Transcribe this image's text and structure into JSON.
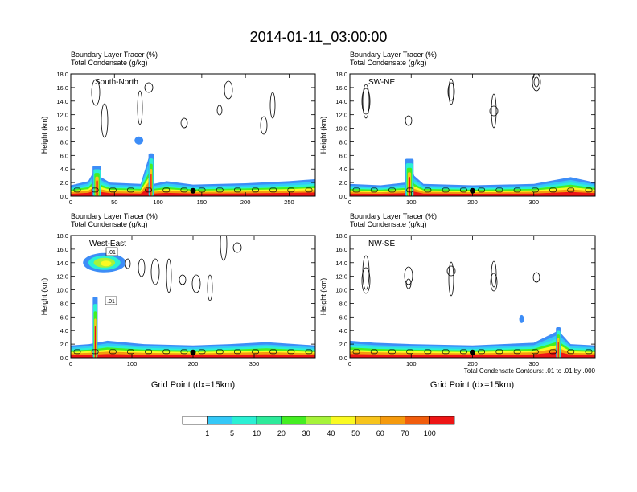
{
  "title": "2014-01-11_03:00:00",
  "footnote": "Total Condensate Contours: .01 to .01 by .000",
  "xlabel": "Grid Point (dx=15km)",
  "ylabel": "Height (km)",
  "header_line1": "Boundary Layer Tracer   (%)",
  "header_line2": "Total Condensate   (g/kg)",
  "colorbar": {
    "levels": [
      "1",
      "5",
      "10",
      "20",
      "30",
      "40",
      "50",
      "60",
      "70",
      "100"
    ],
    "colors": [
      "#ffffff",
      "#3d8df7",
      "#34c8f7",
      "#2bf0d4",
      "#2dea9a",
      "#44ee22",
      "#a6f33a",
      "#fafa22",
      "#f7c41c",
      "#f59a0d",
      "#f15d0d",
      "#ee1515"
    ]
  },
  "chart_data": [
    {
      "type": "heatmap",
      "panel": "top-left",
      "label": "South-North",
      "ylabel": "Height (km)",
      "xlim": [
        0,
        280
      ],
      "ylim": [
        0,
        18
      ],
      "xticks": [
        "0",
        "50",
        "100",
        "150",
        "200",
        "250"
      ],
      "xtick_values": [
        0,
        50,
        100,
        150,
        200,
        250
      ],
      "yticks": [
        "0.0",
        "2.0",
        "4.0",
        "6.0",
        "8.0",
        "10.0",
        "12.0",
        "14.0",
        "16.0",
        "18.0"
      ],
      "marker_x": 140,
      "boundary_layer_top": [
        [
          0,
          1.6
        ],
        [
          20,
          2.2
        ],
        [
          28,
          4.0
        ],
        [
          32,
          3.0
        ],
        [
          45,
          2.0
        ],
        [
          80,
          1.8
        ],
        [
          90,
          6.0
        ],
        [
          95,
          1.8
        ],
        [
          110,
          2.2
        ],
        [
          140,
          1.7
        ],
        [
          200,
          1.9
        ],
        [
          250,
          2.2
        ],
        [
          280,
          2.5
        ]
      ],
      "plumes": [
        {
          "x": 92,
          "ytop": 6.3,
          "width": 6
        },
        {
          "x": 30,
          "ytop": 4.5,
          "width": 10
        },
        {
          "x": 78,
          "ytop": 9.0,
          "width": 10,
          "detached": true
        }
      ]
    },
    {
      "type": "heatmap",
      "panel": "top-right",
      "label": "SW-NE",
      "ylabel": "Height (km)",
      "xlim": [
        0,
        400
      ],
      "ylim": [
        0,
        18
      ],
      "xticks": [
        "0",
        "100",
        "200",
        "300"
      ],
      "xtick_values": [
        0,
        100,
        200,
        300
      ],
      "yticks": [
        "0.0",
        "2.0",
        "4.0",
        "6.0",
        "8.0",
        "10.0",
        "12.0",
        "14.0",
        "16.0",
        "18.0"
      ],
      "marker_x": 200,
      "boundary_layer_top": [
        [
          0,
          1.8
        ],
        [
          50,
          1.6
        ],
        [
          90,
          2.0
        ],
        [
          95,
          5.5
        ],
        [
          105,
          3.0
        ],
        [
          120,
          1.8
        ],
        [
          200,
          1.6
        ],
        [
          300,
          1.8
        ],
        [
          360,
          2.8
        ],
        [
          400,
          2.0
        ]
      ],
      "plumes": [
        {
          "x": 97,
          "ytop": 5.5,
          "width": 14
        }
      ]
    },
    {
      "type": "heatmap",
      "panel": "bottom-left",
      "label": "West-East",
      "ylabel": "Height (km)",
      "xlim": [
        0,
        400
      ],
      "ylim": [
        0,
        18
      ],
      "xticks": [
        "0",
        "100",
        "200",
        "300"
      ],
      "xtick_values": [
        0,
        100,
        200,
        300
      ],
      "yticks": [
        "0.0",
        "2.0",
        "4.0",
        "6.0",
        "8.0",
        "10.0",
        "12.0",
        "14.0",
        "16.0",
        "18.0"
      ],
      "marker_x": 200,
      "contour_labels": [
        ".01",
        ".01"
      ],
      "boundary_layer_top": [
        [
          0,
          1.8
        ],
        [
          30,
          2.0
        ],
        [
          60,
          2.5
        ],
        [
          120,
          2.0
        ],
        [
          200,
          1.8
        ],
        [
          260,
          2.0
        ],
        [
          320,
          2.3
        ],
        [
          400,
          1.8
        ]
      ],
      "plumes": [
        {
          "x": 40,
          "ytop": 9.0,
          "width": 8
        },
        {
          "x": 55,
          "ytop": 15.5,
          "width": 70,
          "anvil": true
        }
      ]
    },
    {
      "type": "heatmap",
      "panel": "bottom-right",
      "label": "NW-SE",
      "ylabel": "Height (km)",
      "xlim": [
        0,
        400
      ],
      "ylim": [
        0,
        18
      ],
      "xticks": [
        "0",
        "100",
        "200",
        "300"
      ],
      "xtick_values": [
        0,
        100,
        200,
        300
      ],
      "yticks": [
        "0.0",
        "2.0",
        "4.0",
        "6.0",
        "8.0",
        "10.0",
        "12.0",
        "14.0",
        "16.0",
        "18.0"
      ],
      "marker_x": 200,
      "boundary_layer_top": [
        [
          0,
          2.5
        ],
        [
          40,
          2.2
        ],
        [
          100,
          2.0
        ],
        [
          200,
          1.8
        ],
        [
          300,
          2.2
        ],
        [
          340,
          4.0
        ],
        [
          360,
          2.0
        ],
        [
          400,
          1.8
        ]
      ],
      "plumes": [
        {
          "x": 340,
          "ytop": 4.5,
          "width": 8
        },
        {
          "x": 280,
          "ytop": 6.5,
          "width": 6,
          "detached": true
        }
      ]
    }
  ]
}
